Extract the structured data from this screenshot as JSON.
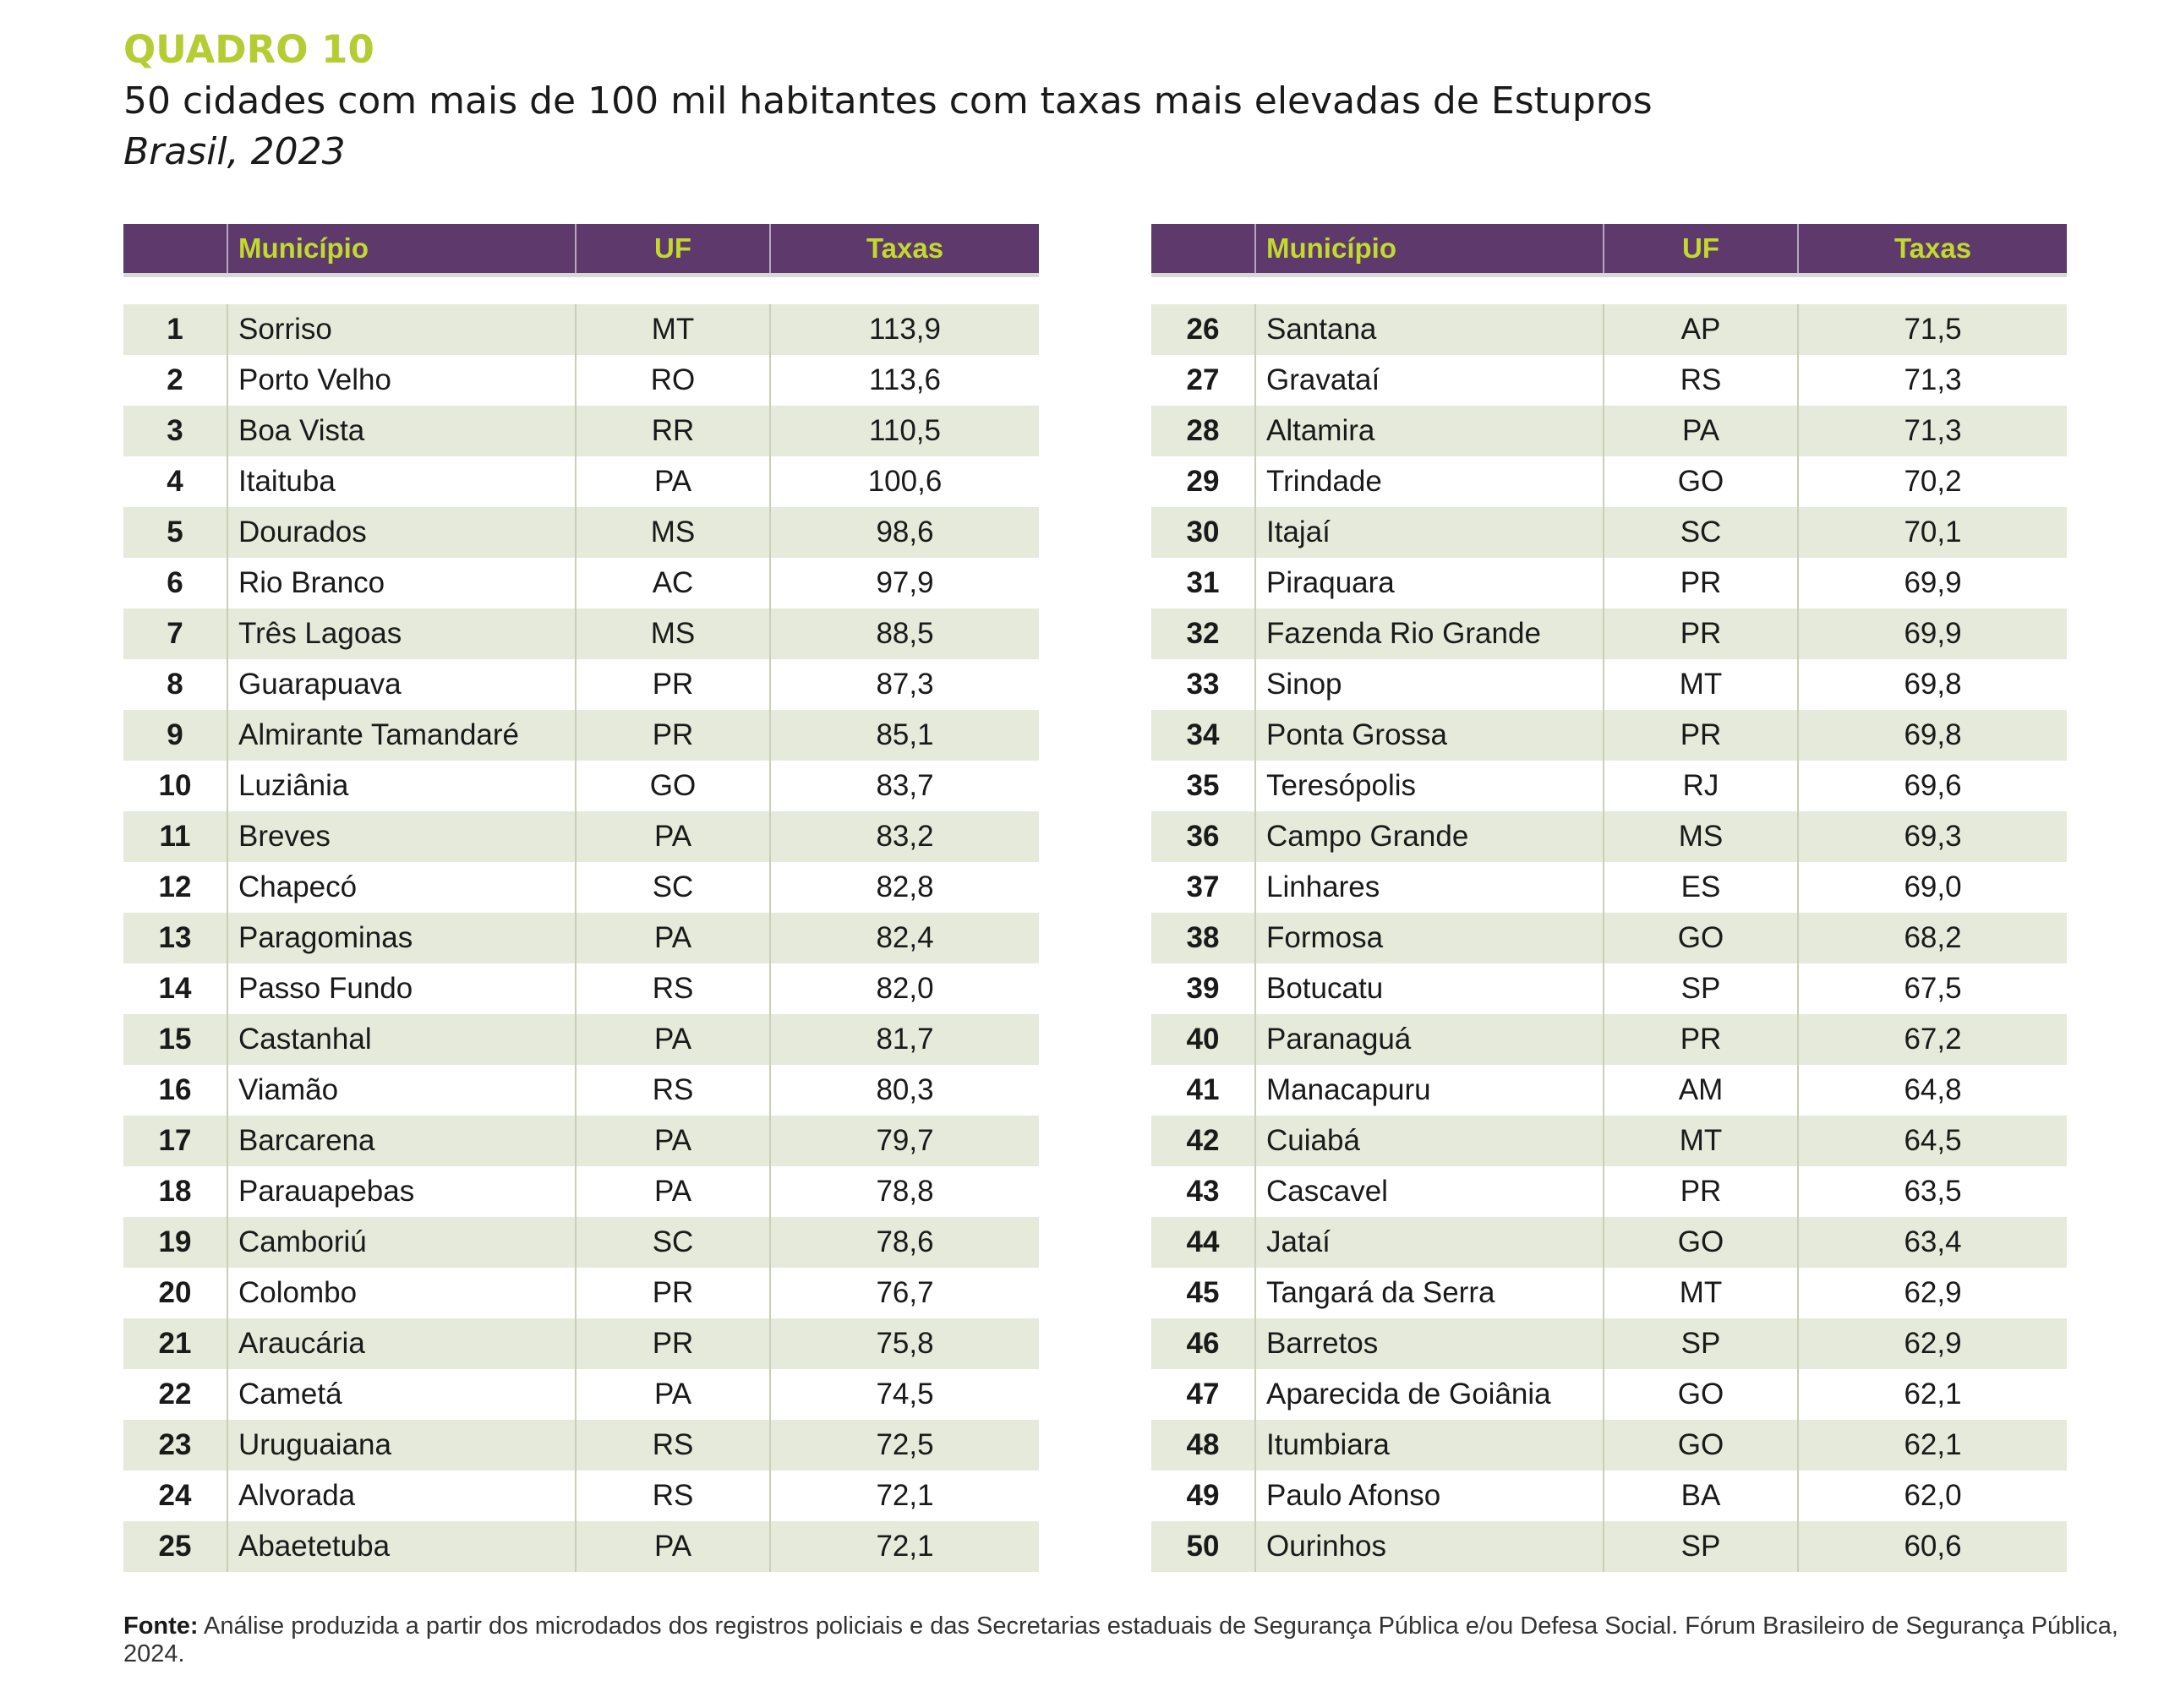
{
  "header": {
    "label": "QUADRO 10",
    "title": "50 cidades com mais de 100 mil habitantes com taxas mais elevadas de Estupros",
    "subtitle": "Brasil, 2023"
  },
  "columns": {
    "num": "",
    "municipio": "Município",
    "uf": "UF",
    "taxas": "Taxas"
  },
  "rows": [
    {
      "n": "1",
      "municipio": "Sorriso",
      "uf": "MT",
      "taxa": "113,9"
    },
    {
      "n": "2",
      "municipio": "Porto Velho",
      "uf": "RO",
      "taxa": "113,6"
    },
    {
      "n": "3",
      "municipio": "Boa Vista",
      "uf": "RR",
      "taxa": "110,5"
    },
    {
      "n": "4",
      "municipio": "Itaituba",
      "uf": "PA",
      "taxa": "100,6"
    },
    {
      "n": "5",
      "municipio": "Dourados",
      "uf": "MS",
      "taxa": "98,6"
    },
    {
      "n": "6",
      "municipio": "Rio Branco",
      "uf": "AC",
      "taxa": "97,9"
    },
    {
      "n": "7",
      "municipio": "Três Lagoas",
      "uf": "MS",
      "taxa": "88,5"
    },
    {
      "n": "8",
      "municipio": "Guarapuava",
      "uf": "PR",
      "taxa": "87,3"
    },
    {
      "n": "9",
      "municipio": "Almirante Tamandaré",
      "uf": "PR",
      "taxa": "85,1"
    },
    {
      "n": "10",
      "municipio": "Luziânia",
      "uf": "GO",
      "taxa": "83,7"
    },
    {
      "n": "11",
      "municipio": "Breves",
      "uf": "PA",
      "taxa": "83,2"
    },
    {
      "n": "12",
      "municipio": "Chapecó",
      "uf": "SC",
      "taxa": "82,8"
    },
    {
      "n": "13",
      "municipio": "Paragominas",
      "uf": "PA",
      "taxa": "82,4"
    },
    {
      "n": "14",
      "municipio": "Passo Fundo",
      "uf": "RS",
      "taxa": "82,0"
    },
    {
      "n": "15",
      "municipio": "Castanhal",
      "uf": "PA",
      "taxa": "81,7"
    },
    {
      "n": "16",
      "municipio": "Viamão",
      "uf": "RS",
      "taxa": "80,3"
    },
    {
      "n": "17",
      "municipio": "Barcarena",
      "uf": "PA",
      "taxa": "79,7"
    },
    {
      "n": "18",
      "municipio": "Parauapebas",
      "uf": "PA",
      "taxa": "78,8"
    },
    {
      "n": "19",
      "municipio": "Camboriú",
      "uf": "SC",
      "taxa": "78,6"
    },
    {
      "n": "20",
      "municipio": "Colombo",
      "uf": "PR",
      "taxa": "76,7"
    },
    {
      "n": "21",
      "municipio": "Araucária",
      "uf": "PR",
      "taxa": "75,8"
    },
    {
      "n": "22",
      "municipio": "Cametá",
      "uf": "PA",
      "taxa": "74,5"
    },
    {
      "n": "23",
      "municipio": "Uruguaiana",
      "uf": "RS",
      "taxa": "72,5"
    },
    {
      "n": "24",
      "municipio": "Alvorada",
      "uf": "RS",
      "taxa": "72,1"
    },
    {
      "n": "25",
      "municipio": "Abaetetuba",
      "uf": "PA",
      "taxa": "72,1"
    },
    {
      "n": "26",
      "municipio": "Santana",
      "uf": "AP",
      "taxa": "71,5"
    },
    {
      "n": "27",
      "municipio": "Gravataí",
      "uf": "RS",
      "taxa": "71,3"
    },
    {
      "n": "28",
      "municipio": "Altamira",
      "uf": "PA",
      "taxa": "71,3"
    },
    {
      "n": "29",
      "municipio": "Trindade",
      "uf": "GO",
      "taxa": "70,2"
    },
    {
      "n": "30",
      "municipio": "Itajaí",
      "uf": "SC",
      "taxa": "70,1"
    },
    {
      "n": "31",
      "municipio": "Piraquara",
      "uf": "PR",
      "taxa": "69,9"
    },
    {
      "n": "32",
      "municipio": "Fazenda Rio Grande",
      "uf": "PR",
      "taxa": "69,9"
    },
    {
      "n": "33",
      "municipio": "Sinop",
      "uf": "MT",
      "taxa": "69,8"
    },
    {
      "n": "34",
      "municipio": "Ponta Grossa",
      "uf": "PR",
      "taxa": "69,8"
    },
    {
      "n": "35",
      "municipio": "Teresópolis",
      "uf": "RJ",
      "taxa": "69,6"
    },
    {
      "n": "36",
      "municipio": "Campo Grande",
      "uf": "MS",
      "taxa": "69,3"
    },
    {
      "n": "37",
      "municipio": "Linhares",
      "uf": "ES",
      "taxa": "69,0"
    },
    {
      "n": "38",
      "municipio": "Formosa",
      "uf": "GO",
      "taxa": "68,2"
    },
    {
      "n": "39",
      "municipio": "Botucatu",
      "uf": "SP",
      "taxa": "67,5"
    },
    {
      "n": "40",
      "municipio": "Paranaguá",
      "uf": "PR",
      "taxa": "67,2"
    },
    {
      "n": "41",
      "municipio": "Manacapuru",
      "uf": "AM",
      "taxa": "64,8"
    },
    {
      "n": "42",
      "municipio": "Cuiabá",
      "uf": "MT",
      "taxa": "64,5"
    },
    {
      "n": "43",
      "municipio": "Cascavel",
      "uf": "PR",
      "taxa": "63,5"
    },
    {
      "n": "44",
      "municipio": "Jataí",
      "uf": "GO",
      "taxa": "63,4"
    },
    {
      "n": "45",
      "municipio": "Tangará da Serra",
      "uf": "MT",
      "taxa": "62,9"
    },
    {
      "n": "46",
      "municipio": "Barretos",
      "uf": "SP",
      "taxa": "62,9"
    },
    {
      "n": "47",
      "municipio": "Aparecida de Goiânia",
      "uf": "GO",
      "taxa": "62,1"
    },
    {
      "n": "48",
      "municipio": "Itumbiara",
      "uf": "GO",
      "taxa": "62,1"
    },
    {
      "n": "49",
      "municipio": "Paulo Afonso",
      "uf": "BA",
      "taxa": "62,0"
    },
    {
      "n": "50",
      "municipio": "Ourinhos",
      "uf": "SP",
      "taxa": "60,6"
    }
  ],
  "footer": {
    "label": "Fonte:",
    "text": " Análise produzida a partir dos microdados dos registros policiais e das Secretarias estaduais de Segurança Pública e/ou Defesa Social. Fórum Brasileiro de Segurança Pública, 2024."
  },
  "colors": {
    "header_bg": "#5d3a6b",
    "header_text": "#c2d92e",
    "label_green": "#b5cc33",
    "row_stripe": "#e6eadb"
  }
}
